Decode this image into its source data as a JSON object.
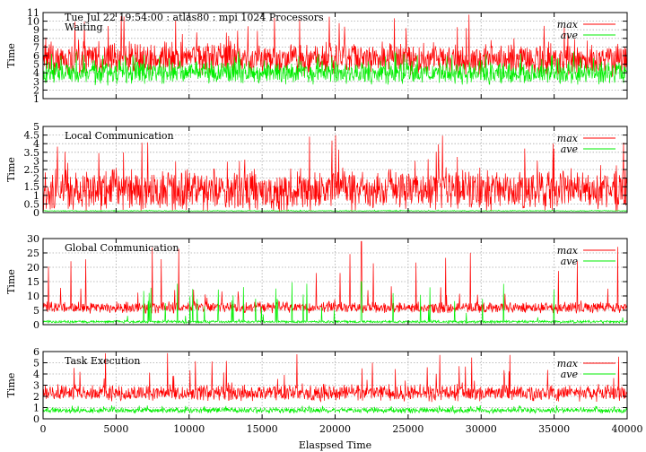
{
  "chart_data": [
    {
      "type": "line",
      "title": "Tue Jul 22 19:54:00 : atlas80 : mpi 1024 Processors",
      "panel_label": "Waiting",
      "ylabel": "Time",
      "xlabel": "",
      "xlim": [
        0,
        40000
      ],
      "ylim": [
        1,
        11
      ],
      "yticks": [
        1,
        2,
        3,
        4,
        5,
        6,
        7,
        8,
        9,
        10,
        11
      ],
      "grid": true,
      "legend": "top-right",
      "series": [
        {
          "name": "max",
          "color": "#ff0000",
          "baseline": 5.6,
          "spread": 1.6,
          "spike_max": 11.0,
          "floor": 1.2
        },
        {
          "name": "ave",
          "color": "#00ee00",
          "baseline": 4.0,
          "spread": 1.1,
          "spike_max": 6.5,
          "floor": 1.0
        }
      ]
    },
    {
      "type": "line",
      "title": "",
      "panel_label": "Local Communication",
      "ylabel": "Time",
      "xlabel": "",
      "xlim": [
        0,
        40000
      ],
      "ylim": [
        0,
        5
      ],
      "yticks": [
        0,
        0.5,
        1,
        1.5,
        2,
        2.5,
        3,
        3.5,
        4,
        4.5,
        5
      ],
      "grid": true,
      "legend": "top-right",
      "series": [
        {
          "name": "max",
          "color": "#ff0000",
          "baseline": 1.3,
          "spread": 1.0,
          "spike_max": 4.6,
          "floor": 0.05
        },
        {
          "name": "ave",
          "color": "#00ee00",
          "baseline": 0.1,
          "spread": 0.02,
          "spike_max": 0.15,
          "floor": 0.05
        }
      ]
    },
    {
      "type": "line",
      "title": "",
      "panel_label": "Global Communication",
      "ylabel": "Time",
      "xlabel": "",
      "xlim": [
        0,
        40000
      ],
      "ylim": [
        0,
        30
      ],
      "yticks": [
        0,
        5,
        10,
        15,
        20,
        25,
        30
      ],
      "grid": true,
      "legend": "top-right",
      "series": [
        {
          "name": "max",
          "color": "#ff0000",
          "baseline": 6.0,
          "spread": 1.6,
          "spike_max": 29.0,
          "floor": 3.0
        },
        {
          "name": "ave",
          "color": "#00ee00",
          "baseline": 1.0,
          "spread": 0.4,
          "spike_max": 15.0,
          "floor": 0.3
        }
      ]
    },
    {
      "type": "line",
      "title": "",
      "panel_label": "Task Execution",
      "ylabel": "Time",
      "xlabel": "Elaspsed Time",
      "xlim": [
        0,
        40000
      ],
      "ylim": [
        0,
        6
      ],
      "yticks": [
        0,
        1,
        2,
        3,
        4,
        5,
        6
      ],
      "xticks": [
        0,
        5000,
        10000,
        15000,
        20000,
        25000,
        30000,
        35000,
        40000
      ],
      "grid": true,
      "legend": "top-right",
      "series": [
        {
          "name": "max",
          "color": "#ff0000",
          "baseline": 2.3,
          "spread": 0.6,
          "spike_max": 5.9,
          "floor": 1.0
        },
        {
          "name": "ave",
          "color": "#00ee00",
          "baseline": 0.75,
          "spread": 0.2,
          "spike_max": 1.2,
          "floor": 0.5
        }
      ]
    }
  ]
}
